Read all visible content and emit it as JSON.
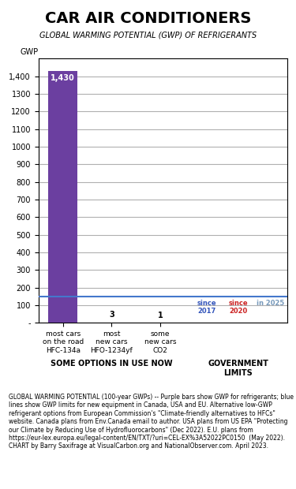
{
  "chart_data": {
    "type": "bar",
    "title": "CAR AIR CONDITIONERS",
    "subtitle": "GLOBAL WARMING POTENTIAL (GWP) OF REFRIGERANTS",
    "ylabel": "GWP",
    "categories": [
      "most cars\non the road\nHFC-134a",
      "most\nnew cars\nHFO-1234yf",
      "some\nnew cars\nCO2"
    ],
    "values": [
      1430,
      3,
      1
    ],
    "value_labels": [
      "1,430",
      "3",
      "1"
    ],
    "data_labels": true,
    "colors": [
      "#6b3fa0",
      "#d4c97a",
      "#b8a0c8"
    ],
    "ylim": [
      0,
      1500
    ],
    "yticks": [
      {
        "value": 0,
        "label": "-"
      },
      100,
      200,
      300,
      400,
      500,
      600,
      700,
      800,
      900,
      1000,
      1100,
      1200,
      1300,
      {
        "value": 1400,
        "label": "1,400"
      }
    ],
    "grid": true,
    "limit_line": {
      "value": 150,
      "color": "#4477cc",
      "labels": [
        {
          "text": "since\n2017",
          "color": "#3355bb"
        },
        {
          "text": "since\n2020",
          "color": "#cc2222"
        },
        {
          "text": "in 2025",
          "color": "#7799bb"
        }
      ]
    },
    "group_labels": [
      "SOME OPTIONS IN USE NOW",
      "GOVERNMENT\nLIMITS"
    ],
    "footnote": "GLOBAL WARMING POTENTIAL (100-year GWPs) -- Purple bars show GWP for refrigerants; blue lines show GWP limits for new equipment in Canada, USA and EU. Alternative low-GWP refrigerant options from European Commission's \"Climate-friendly alternatives to HFCs\" website. Canada plans from Env.Canada email to author. USA plans from US EPA \"Protecting our Climate by Reducing Use of Hydrofluorocarbons\" (Dec 2022). E.U. plans from https://eur-lex.europa.eu/legal-content/EN/TXT/?uri=CEL-EX%3A52022PC0150  (May 2022). CHART by Barry Saxifrage at VisualCarbon.org and NationalObserver.com. April 2023."
  }
}
